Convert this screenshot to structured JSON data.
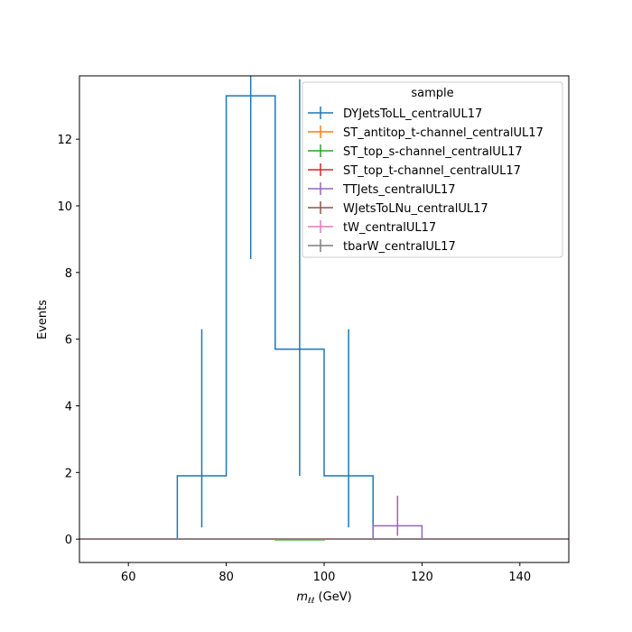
{
  "chart_data": {
    "type": "line",
    "plot_style": "step histogram with error bars",
    "xlabel_math": "m",
    "xlabel_sub": "ℓℓ",
    "xlabel_unit": " (GeV)",
    "ylabel": "Events",
    "xlim": [
      50,
      150
    ],
    "ylim": [
      -0.7,
      13.9
    ],
    "xticks": [
      60,
      80,
      100,
      120,
      140
    ],
    "yticks": [
      0,
      2,
      4,
      6,
      8,
      10,
      12
    ],
    "grid": false,
    "legend": {
      "title": "sample",
      "placement": "top-right"
    },
    "bin_edges": [
      50,
      55,
      60,
      65,
      70,
      75,
      80,
      85,
      90,
      95,
      100,
      105,
      110,
      115,
      120,
      125,
      130,
      135,
      140,
      145,
      150
    ],
    "series": [
      {
        "name": "DYJetsToLL_centralUL17",
        "color": "#1f77b4",
        "values": [
          0,
          0,
          0,
          0,
          1.9,
          1.9,
          13.3,
          13.3,
          5.7,
          5.7,
          1.9,
          1.9,
          0,
          0,
          0,
          0,
          0,
          0,
          0,
          0
        ],
        "errors": [
          {
            "x": 75,
            "low": 0.35,
            "high": 6.3
          },
          {
            "x": 85,
            "low": 8.4,
            "high": 13.9
          },
          {
            "x": 95,
            "low": 1.9,
            "high": 13.8
          },
          {
            "x": 105,
            "low": 0.35,
            "high": 6.3
          }
        ]
      },
      {
        "name": "ST_antitop_t-channel_centralUL17",
        "color": "#ff7f0e",
        "values": [
          0,
          0,
          0,
          0,
          0,
          0,
          0,
          0,
          0,
          0,
          0,
          0,
          0,
          0,
          0,
          0,
          0,
          0,
          0,
          0
        ],
        "errors": []
      },
      {
        "name": "ST_top_s-channel_centralUL17",
        "color": "#2ca02c",
        "values": [
          0,
          0,
          0,
          0,
          0,
          0,
          0,
          0,
          -0.02,
          -0.02,
          0,
          0,
          0,
          0,
          0,
          0,
          0,
          0,
          0,
          0
        ],
        "errors": []
      },
      {
        "name": "ST_top_t-channel_centralUL17",
        "color": "#d62728",
        "values": [
          0,
          0,
          0,
          0,
          0,
          0,
          0,
          0,
          0,
          0,
          0,
          0,
          0,
          0,
          0,
          0,
          0,
          0,
          0,
          0
        ],
        "errors": []
      },
      {
        "name": "TTJets_centralUL17",
        "color": "#9467bd",
        "values": [
          0,
          0,
          0,
          0,
          0,
          0,
          0,
          0,
          0,
          0,
          0,
          0,
          0.4,
          0.4,
          0,
          0,
          0,
          0,
          0,
          0
        ],
        "errors": [
          {
            "x": 115,
            "low": 0.1,
            "high": 1.3
          }
        ]
      },
      {
        "name": "WJetsToLNu_centralUL17",
        "color": "#8c564b",
        "values": [
          0,
          0,
          0,
          0,
          0,
          0,
          0,
          0,
          0,
          0,
          0,
          0,
          0,
          0,
          0,
          0,
          0,
          0,
          0,
          0
        ],
        "errors": []
      },
      {
        "name": "tW_centralUL17",
        "color": "#e377c2",
        "values": [
          0,
          0,
          0,
          0,
          0,
          0,
          0,
          0,
          0,
          0,
          0,
          0,
          0,
          0,
          0,
          0,
          0,
          0,
          0,
          0
        ],
        "errors": []
      },
      {
        "name": "tbarW_centralUL17",
        "color": "#7f7f7f",
        "values": [
          0,
          0,
          0,
          0,
          0,
          0,
          0,
          0,
          0,
          0,
          0,
          0,
          0,
          0,
          0,
          0,
          0,
          0,
          0,
          0
        ],
        "errors": []
      }
    ]
  }
}
